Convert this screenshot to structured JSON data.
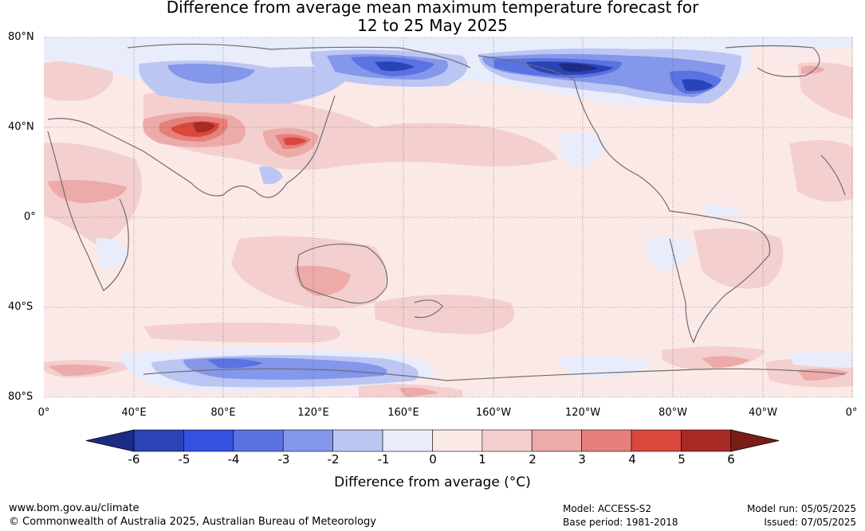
{
  "title": {
    "line1": "Difference from average mean maximum temperature forecast for",
    "line2": "12 to 25 May 2025"
  },
  "map": {
    "lat_labels": [
      "80°N",
      "40°N",
      "0°",
      "40°S",
      "80°S"
    ],
    "lon_labels": [
      "0°",
      "40°E",
      "80°E",
      "120°E",
      "160°E",
      "160°W",
      "120°W",
      "80°W",
      "40°W",
      "0°"
    ],
    "background_color": "#fbe9e8"
  },
  "colorbar": {
    "ticks": [
      "-6",
      "-5",
      "-4",
      "-3",
      "-2",
      "-1",
      "0",
      "1",
      "2",
      "3",
      "4",
      "5",
      "6"
    ],
    "colors": [
      "#1d2b86",
      "#2a43b5",
      "#3451e0",
      "#5a72e2",
      "#8497ea",
      "#bcc6f3",
      "#e8ecfb",
      "#fbe9e8",
      "#f3cfcf",
      "#ecaaa8",
      "#e6807a",
      "#d9473d",
      "#a82a24",
      "#7a1c18"
    ],
    "label": "Difference from average (°C)"
  },
  "footer": {
    "website": "www.bom.gov.au/climate",
    "copyright": "© Commonwealth of Australia 2025, Australian Bureau of Meteorology",
    "model": "Model: ACCESS-S2",
    "base_period": "Base period: 1981-2018",
    "model_run": "Model run: 05/05/2025",
    "issued": "Issued: 07/05/2025"
  }
}
